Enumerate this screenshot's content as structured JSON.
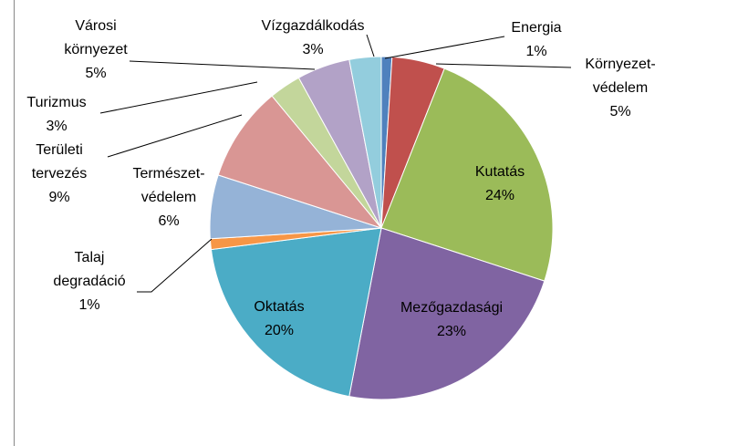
{
  "chart_data": {
    "type": "pie",
    "categories": [
      "Energia",
      "Környezet-\nvédelem",
      "Kutatás",
      "Mezőgazdasági",
      "Oktatás",
      "Talaj\ndegradáció",
      "Természet-\nvédelem",
      "Területi\ntervezés",
      "Turizmus",
      "Városi\nkörnyezet",
      "Vízgazdálkodás"
    ],
    "values": [
      1,
      5,
      24,
      23,
      20,
      1,
      6,
      9,
      3,
      5,
      3
    ],
    "value_labels": [
      "1%",
      "5%",
      "24%",
      "23%",
      "20%",
      "1%",
      "6%",
      "9%",
      "3%",
      "5%",
      "3%"
    ],
    "colors": [
      "#4f81bd",
      "#c0504d",
      "#9bbb59",
      "#8064a2",
      "#4bacc6",
      "#f79646",
      "#95b3d7",
      "#d99694",
      "#c3d69b",
      "#b2a2c7",
      "#93cddd"
    ]
  }
}
